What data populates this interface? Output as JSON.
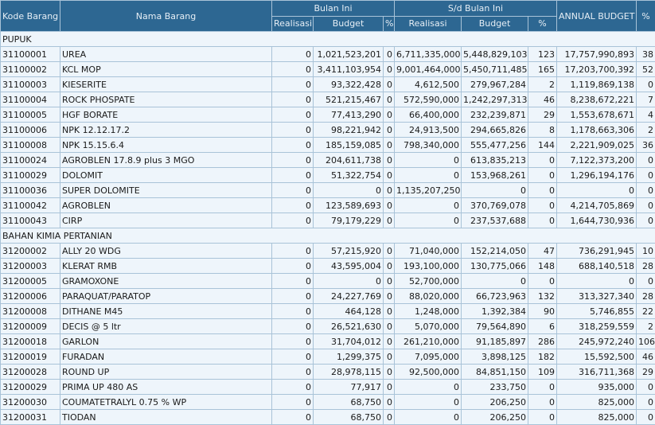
{
  "header": {
    "kode": "Kode Barang",
    "nama": "Nama Barang",
    "bulan_ini": "Bulan Ini",
    "sd_bulan_ini": "S/d Bulan Ini",
    "annual_budget": "ANNUAL BUDGET",
    "pct": "%",
    "realisasi": "Realisasi",
    "budget": "Budget"
  },
  "groups": [
    {
      "name": "PUPUK",
      "rows": [
        {
          "kode": "31100001",
          "nama": "UREA",
          "r1": "0",
          "b1": "1,021,523,201",
          "p1": "0",
          "r2": "6,711,335,000",
          "b2": "5,448,829,103",
          "p2": "123",
          "ab": "17,757,990,893",
          "p3": "38"
        },
        {
          "kode": "31100002",
          "nama": "KCL MOP",
          "r1": "0",
          "b1": "3,411,103,954",
          "p1": "0",
          "r2": "9,001,464,000",
          "b2": "5,450,711,485",
          "p2": "165",
          "ab": "17,203,700,392",
          "p3": "52"
        },
        {
          "kode": "31100003",
          "nama": "KIESERITE",
          "r1": "0",
          "b1": "93,322,428",
          "p1": "0",
          "r2": "4,612,500",
          "b2": "279,967,284",
          "p2": "2",
          "ab": "1,119,869,138",
          "p3": "0"
        },
        {
          "kode": "31100004",
          "nama": "ROCK PHOSPATE",
          "r1": "0",
          "b1": "521,215,467",
          "p1": "0",
          "r2": "572,590,000",
          "b2": "1,242,297,313",
          "p2": "46",
          "ab": "8,238,672,221",
          "p3": "7"
        },
        {
          "kode": "31100005",
          "nama": "HGF BORATE",
          "r1": "0",
          "b1": "77,413,290",
          "p1": "0",
          "r2": "66,400,000",
          "b2": "232,239,871",
          "p2": "29",
          "ab": "1,553,678,671",
          "p3": "4"
        },
        {
          "kode": "31100006",
          "nama": "NPK 12.12.17.2",
          "r1": "0",
          "b1": "98,221,942",
          "p1": "0",
          "r2": "24,913,500",
          "b2": "294,665,826",
          "p2": "8",
          "ab": "1,178,663,306",
          "p3": "2"
        },
        {
          "kode": "31100008",
          "nama": "NPK 15.15.6.4",
          "r1": "0",
          "b1": "185,159,085",
          "p1": "0",
          "r2": "798,340,000",
          "b2": "555,477,256",
          "p2": "144",
          "ab": "2,221,909,025",
          "p3": "36"
        },
        {
          "kode": "31100024",
          "nama": "AGROBLEN 17.8.9 plus 3 MGO",
          "r1": "0",
          "b1": "204,611,738",
          "p1": "0",
          "r2": "0",
          "b2": "613,835,213",
          "p2": "0",
          "ab": "7,122,373,200",
          "p3": "0"
        },
        {
          "kode": "31100029",
          "nama": "DOLOMIT",
          "r1": "0",
          "b1": "51,322,754",
          "p1": "0",
          "r2": "0",
          "b2": "153,968,261",
          "p2": "0",
          "ab": "1,296,194,176",
          "p3": "0"
        },
        {
          "kode": "31100036",
          "nama": "SUPER DOLOMITE",
          "r1": "0",
          "b1": "0",
          "p1": "0",
          "r2": "1,135,207,250",
          "b2": "0",
          "p2": "0",
          "ab": "0",
          "p3": "0"
        },
        {
          "kode": "31100042",
          "nama": "AGROBLEN",
          "r1": "0",
          "b1": "123,589,693",
          "p1": "0",
          "r2": "0",
          "b2": "370,769,078",
          "p2": "0",
          "ab": "4,214,705,869",
          "p3": "0"
        },
        {
          "kode": "31100043",
          "nama": "CIRP",
          "r1": "0",
          "b1": "79,179,229",
          "p1": "0",
          "r2": "0",
          "b2": "237,537,688",
          "p2": "0",
          "ab": "1,644,730,936",
          "p3": "0"
        }
      ]
    },
    {
      "name": "BAHAN KIMIA PERTANIAN",
      "rows": [
        {
          "kode": "31200002",
          "nama": "ALLY 20 WDG",
          "r1": "0",
          "b1": "57,215,920",
          "p1": "0",
          "r2": "71,040,000",
          "b2": "152,214,050",
          "p2": "47",
          "ab": "736,291,945",
          "p3": "10"
        },
        {
          "kode": "31200003",
          "nama": "KLERAT RMB",
          "r1": "0",
          "b1": "43,595,004",
          "p1": "0",
          "r2": "193,100,000",
          "b2": "130,775,066",
          "p2": "148",
          "ab": "688,140,518",
          "p3": "28"
        },
        {
          "kode": "31200005",
          "nama": "GRAMOXONE",
          "r1": "0",
          "b1": "0",
          "p1": "0",
          "r2": "52,700,000",
          "b2": "0",
          "p2": "0",
          "ab": "0",
          "p3": "0"
        },
        {
          "kode": "31200006",
          "nama": "PARAQUAT/PARATOP",
          "r1": "0",
          "b1": "24,227,769",
          "p1": "0",
          "r2": "88,020,000",
          "b2": "66,723,963",
          "p2": "132",
          "ab": "313,327,340",
          "p3": "28"
        },
        {
          "kode": "31200008",
          "nama": "DITHANE M45",
          "r1": "0",
          "b1": "464,128",
          "p1": "0",
          "r2": "1,248,000",
          "b2": "1,392,384",
          "p2": "90",
          "ab": "5,746,855",
          "p3": "22"
        },
        {
          "kode": "31200009",
          "nama": "DECIS @ 5 ltr",
          "r1": "0",
          "b1": "26,521,630",
          "p1": "0",
          "r2": "5,070,000",
          "b2": "79,564,890",
          "p2": "6",
          "ab": "318,259,559",
          "p3": "2"
        },
        {
          "kode": "31200018",
          "nama": "GARLON",
          "r1": "0",
          "b1": "31,704,012",
          "p1": "0",
          "r2": "261,210,000",
          "b2": "91,185,897",
          "p2": "286",
          "ab": "245,972,240",
          "p3": "106"
        },
        {
          "kode": "31200019",
          "nama": "FURADAN",
          "r1": "0",
          "b1": "1,299,375",
          "p1": "0",
          "r2": "7,095,000",
          "b2": "3,898,125",
          "p2": "182",
          "ab": "15,592,500",
          "p3": "46"
        },
        {
          "kode": "31200028",
          "nama": "ROUND UP",
          "r1": "0",
          "b1": "28,978,115",
          "p1": "0",
          "r2": "92,500,000",
          "b2": "84,851,150",
          "p2": "109",
          "ab": "316,711,368",
          "p3": "29"
        },
        {
          "kode": "31200029",
          "nama": "PRIMA UP 480 AS",
          "r1": "0",
          "b1": "77,917",
          "p1": "0",
          "r2": "0",
          "b2": "233,750",
          "p2": "0",
          "ab": "935,000",
          "p3": "0"
        },
        {
          "kode": "31200030",
          "nama": "COUMATETRALYL 0.75 % WP",
          "r1": "0",
          "b1": "68,750",
          "p1": "0",
          "r2": "0",
          "b2": "206,250",
          "p2": "0",
          "ab": "825,000",
          "p3": "0"
        },
        {
          "kode": "31200031",
          "nama": "TIODAN",
          "r1": "0",
          "b1": "68,750",
          "p1": "0",
          "r2": "0",
          "b2": "206,250",
          "p2": "0",
          "ab": "825,000",
          "p3": "0"
        }
      ]
    }
  ]
}
